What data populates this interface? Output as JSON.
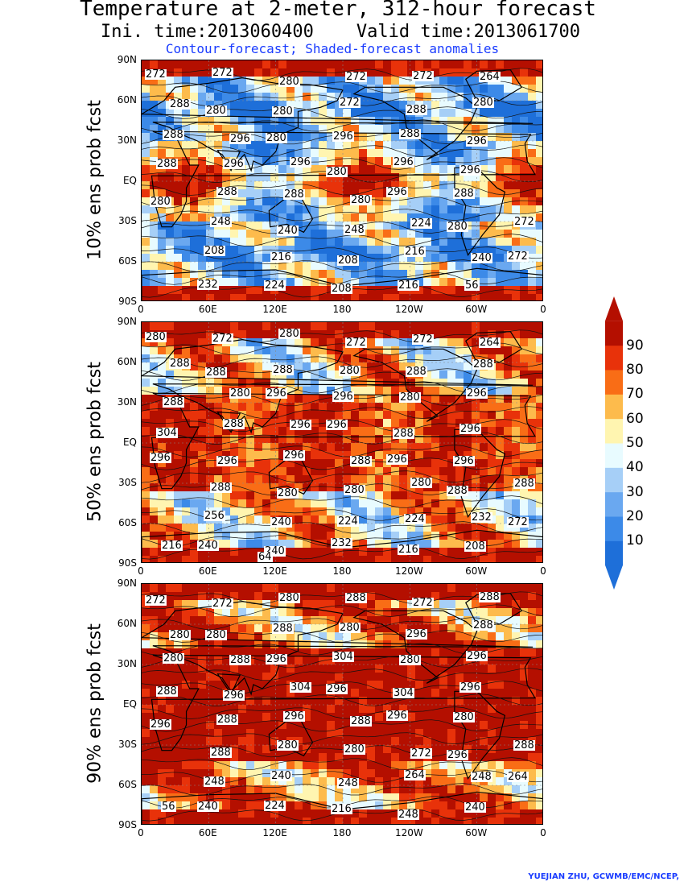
{
  "title": {
    "line1": "Temperature at 2-meter, 312-hour forecast",
    "line2": "Ini. time:2013060400    Valid time:2013061700",
    "line3": "Contour-forecast; Shaded-forecast anomalies"
  },
  "credit": "YUEJIAN ZHU, GCWMB/EMC/NCEP,",
  "colorbar": {
    "levels": [
      "10",
      "20",
      "30",
      "40",
      "50",
      "60",
      "70",
      "80",
      "90"
    ],
    "colors": [
      "#1e6fd9",
      "#3c8ae8",
      "#6aa8f0",
      "#a6cff7",
      "#e8fbff",
      "#fff5b0",
      "#fdbb4c",
      "#f96d16",
      "#e8320a",
      "#b40f00"
    ]
  },
  "chart_data": [
    {
      "type": "heatmap",
      "ylabel": "10% ens prob fcst",
      "xticks": [
        "0",
        "60E",
        "120E",
        "180",
        "120W",
        "60W",
        "0"
      ],
      "yticks": [
        "90N",
        "60N",
        "30N",
        "EQ",
        "30S",
        "60S",
        "90S"
      ],
      "xlim": [
        0,
        360
      ],
      "ylim": [
        -90,
        90
      ],
      "contour_labels": [
        "272",
        "272",
        "280",
        "272",
        "272",
        "264",
        "280",
        "280",
        "272",
        "288",
        "280",
        "288",
        "280",
        "296",
        "288",
        "296",
        "288",
        "296",
        "280",
        "296",
        "296",
        "288",
        "296",
        "296",
        "296",
        "288",
        "280",
        "288",
        "288",
        "280",
        "280",
        "272",
        "248",
        "240",
        "248",
        "224",
        "272",
        "208",
        "216",
        "208",
        "216",
        "240",
        "232",
        "224",
        "208",
        "216",
        "56"
      ]
    },
    {
      "type": "heatmap",
      "ylabel": "50% ens prob fcst",
      "xticks": [
        "0",
        "60E",
        "120E",
        "180",
        "120W",
        "60W",
        "0"
      ],
      "yticks": [
        "90N",
        "60N",
        "30N",
        "EQ",
        "30S",
        "60S",
        "90S"
      ],
      "xlim": [
        0,
        360
      ],
      "ylim": [
        -90,
        90
      ],
      "contour_labels": [
        "280",
        "272",
        "280",
        "272",
        "272",
        "264",
        "288",
        "288",
        "280",
        "288",
        "288",
        "288",
        "296",
        "296",
        "280",
        "296",
        "288",
        "280",
        "296",
        "288",
        "296",
        "304",
        "288",
        "296",
        "296",
        "296",
        "296",
        "296",
        "296",
        "288",
        "288",
        "288",
        "288",
        "280",
        "280",
        "280",
        "272",
        "256",
        "240",
        "224",
        "224",
        "232",
        "240",
        "240",
        "232",
        "216",
        "208",
        "216",
        "64"
      ]
    },
    {
      "type": "heatmap",
      "ylabel": "90% ens prob fcst",
      "xticks": [
        "0",
        "60E",
        "120E",
        "180",
        "120W",
        "60W",
        "0"
      ],
      "yticks": [
        "90N",
        "60N",
        "30N",
        "EQ",
        "30S",
        "60S",
        "90S"
      ],
      "xlim": [
        0,
        360
      ],
      "ylim": [
        -90,
        90
      ],
      "contour_labels": [
        "272",
        "272",
        "280",
        "288",
        "272",
        "288",
        "280",
        "288",
        "280",
        "296",
        "288",
        "280",
        "296",
        "304",
        "280",
        "296",
        "280",
        "288",
        "296",
        "304",
        "296",
        "288",
        "296",
        "304",
        "296",
        "280",
        "296",
        "288",
        "296",
        "288",
        "296",
        "288",
        "288",
        "280",
        "280",
        "272",
        "264",
        "248",
        "240",
        "248",
        "264",
        "248",
        "240",
        "224",
        "216",
        "248",
        "240",
        "56"
      ]
    }
  ]
}
